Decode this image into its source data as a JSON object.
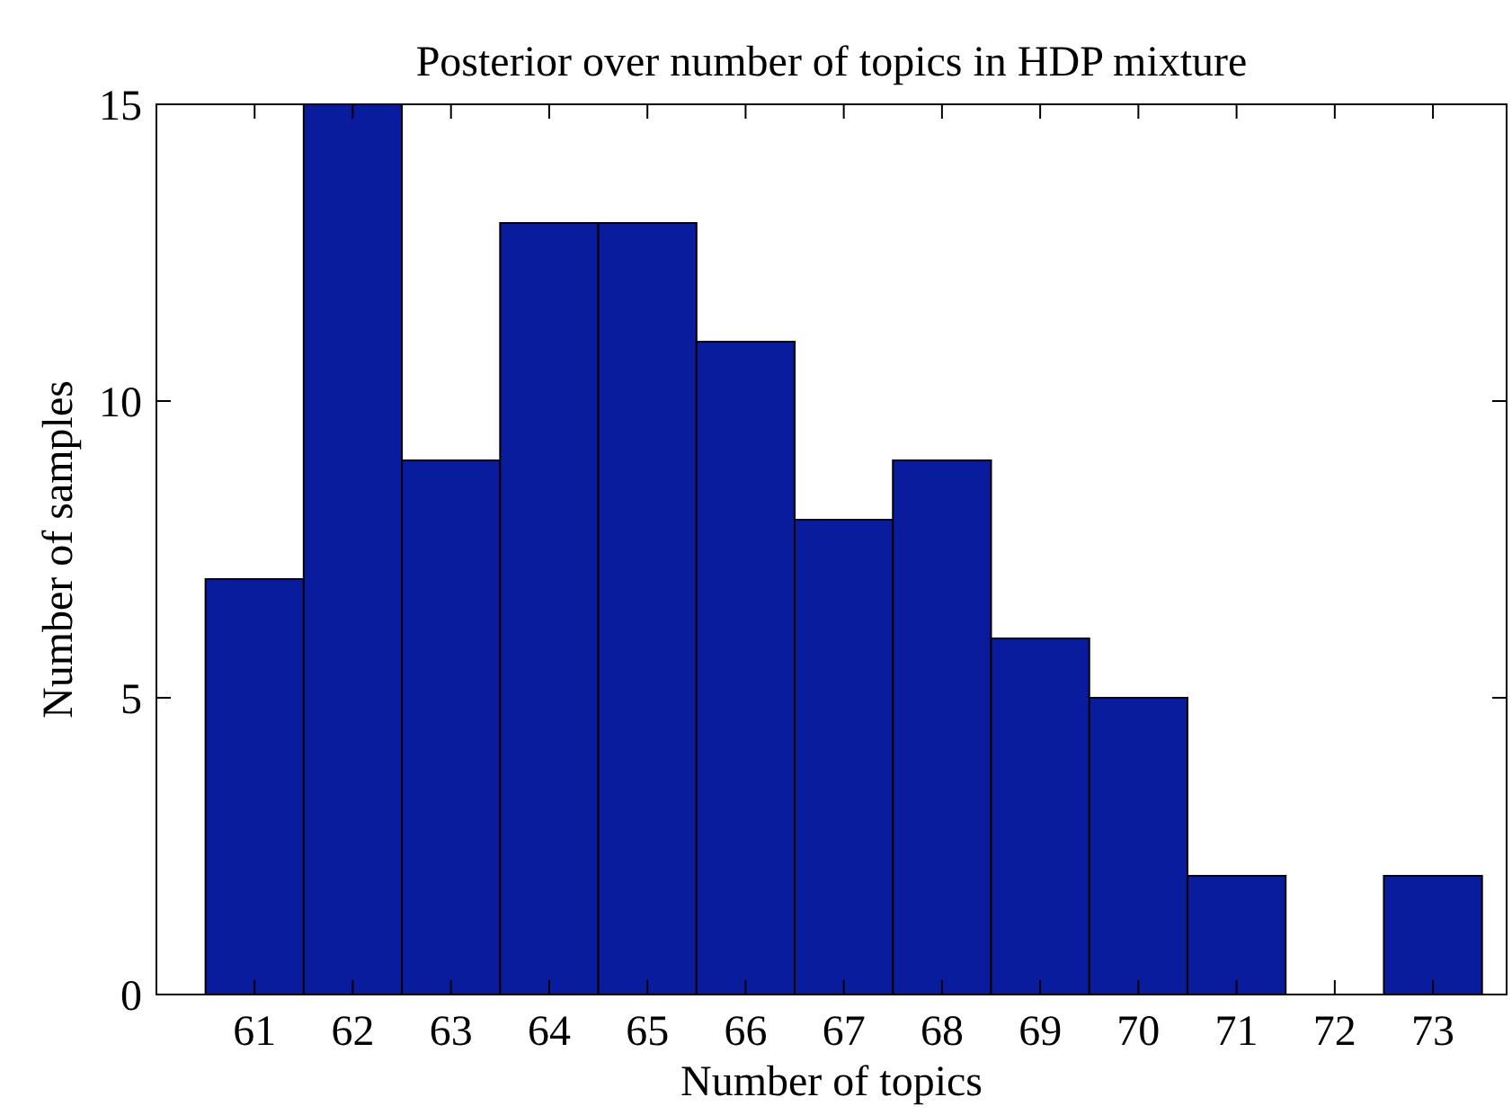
{
  "chart_data": {
    "type": "histogram",
    "title": "Posterior over number of topics in HDP mixture",
    "xlabel": "Number of topics",
    "ylabel": "Number of samples",
    "bins": [
      60.5,
      61.5,
      62.5,
      63.5,
      64.5,
      65.5,
      66.5,
      67.5,
      68.5,
      69.5,
      70.5,
      71.5,
      72.5,
      73.5
    ],
    "values": [
      7,
      15,
      9,
      13,
      13,
      11,
      8,
      9,
      6,
      5,
      2,
      0,
      2
    ],
    "color": "#0a1c9e",
    "xlim": [
      60,
      73.75
    ],
    "xticks": [
      61,
      62,
      63,
      64,
      65,
      66,
      67,
      68,
      69,
      70,
      71,
      72,
      73
    ],
    "ylim": [
      0,
      15
    ],
    "yticks": [
      0,
      5,
      10,
      15
    ],
    "grid": false
  }
}
